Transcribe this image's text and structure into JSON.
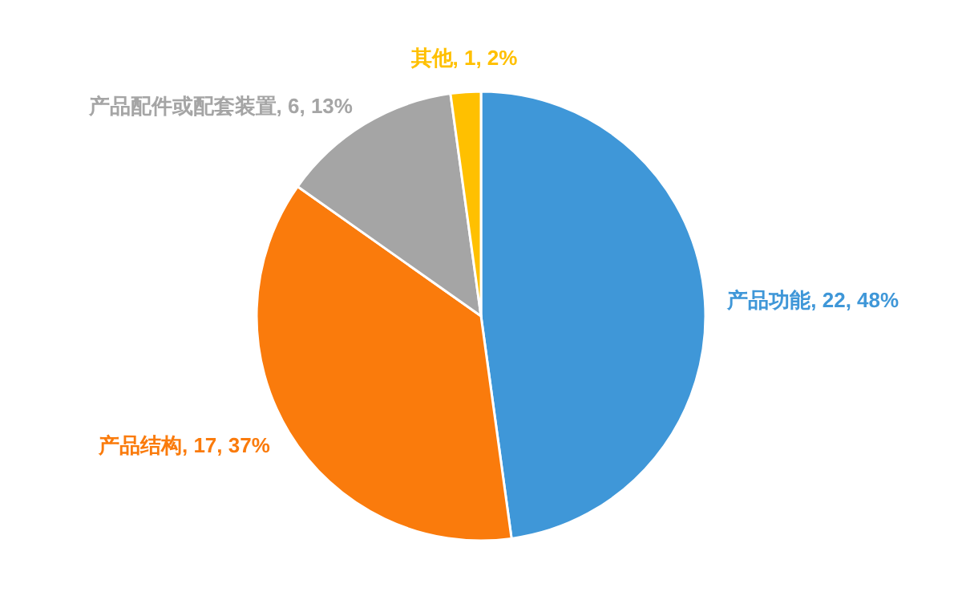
{
  "chart_data": {
    "type": "pie",
    "categories": [
      "产品功能",
      "产品结构",
      "产品配件或配套装置",
      "其他"
    ],
    "values": [
      22,
      17,
      6,
      1
    ],
    "colors": [
      "#3f97d8",
      "#fa7b0c",
      "#a5a5a5",
      "#ffc000"
    ],
    "value_labels": [
      "22, 48%",
      "17, 37%",
      "6, 13%",
      "1, 2%"
    ]
  }
}
